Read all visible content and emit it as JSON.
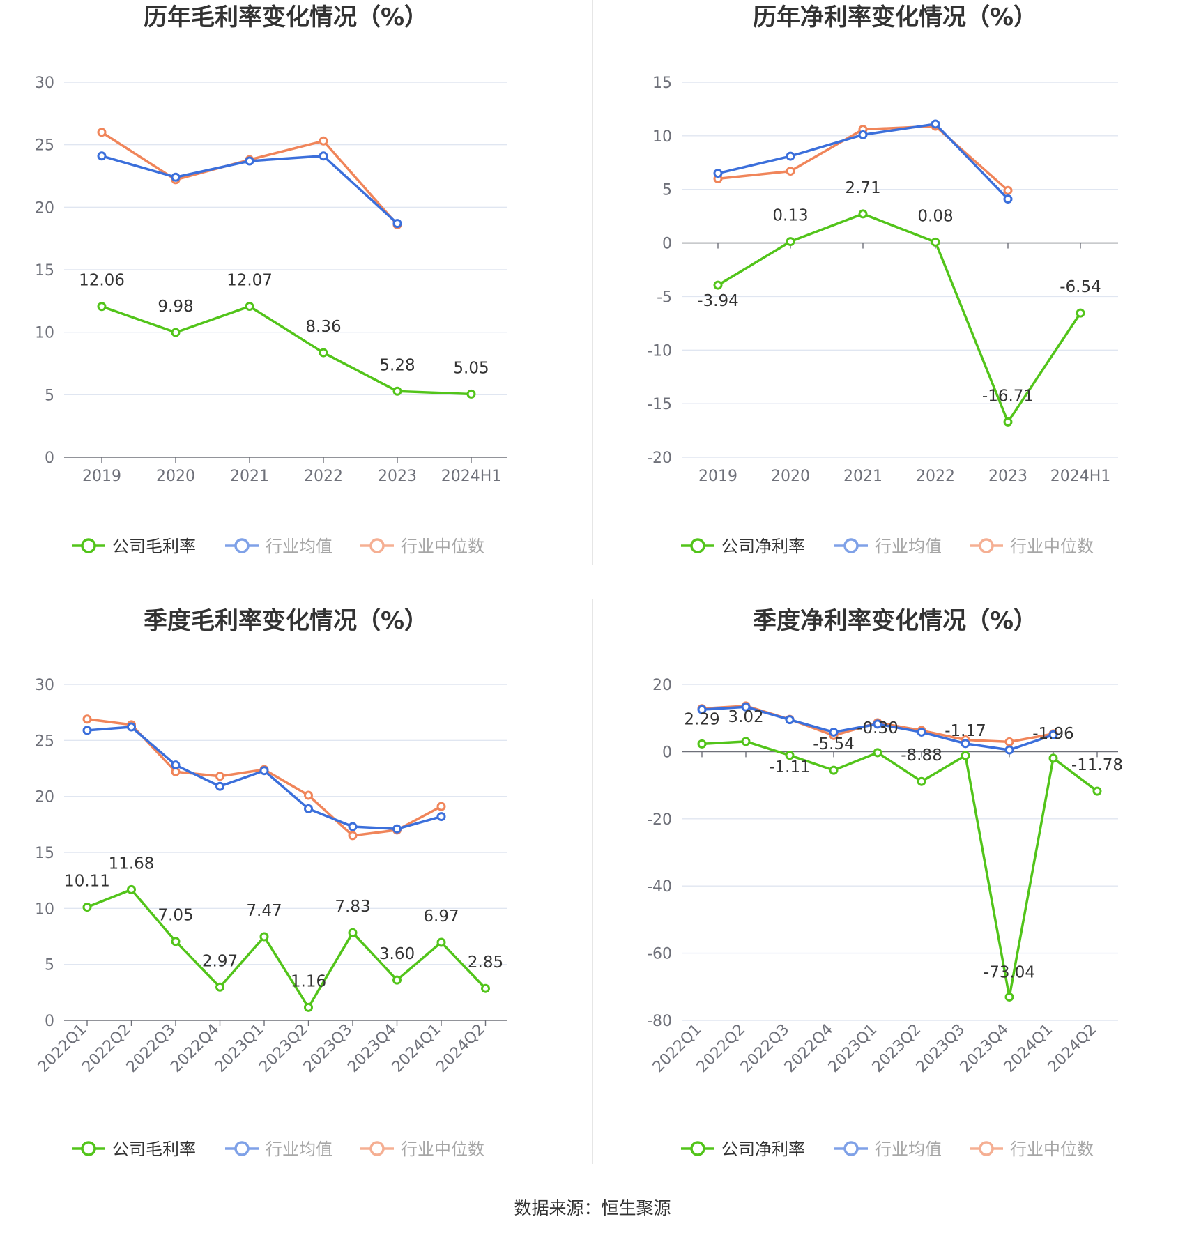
{
  "source_label": "数据来源：恒生聚源",
  "colors": {
    "company": "#52c41a",
    "avg": "#3b6fdb",
    "median": "#f0855a",
    "grid": "#e0e6f1",
    "axis": "#6e7079"
  },
  "chart_data": [
    {
      "id": "annual-gross",
      "type": "line",
      "title": "历年毛利率变化情况（%）",
      "categories": [
        "2019",
        "2020",
        "2021",
        "2022",
        "2023",
        "2024H1"
      ],
      "ylim": [
        0,
        30
      ],
      "yticks": [
        0,
        5,
        10,
        15,
        20,
        25,
        30
      ],
      "rotate_x": false,
      "series": [
        {
          "name": "公司毛利率",
          "key": "company",
          "values": [
            12.06,
            9.98,
            12.07,
            8.36,
            5.28,
            5.05
          ],
          "labels": [
            "12.06",
            "9.98",
            "12.07",
            "8.36",
            "5.28",
            "5.05"
          ]
        },
        {
          "name": "行业均值",
          "key": "avg",
          "values": [
            24.1,
            22.4,
            23.7,
            24.1,
            18.7,
            null
          ]
        },
        {
          "name": "行业中位数",
          "key": "median",
          "values": [
            26.0,
            22.2,
            23.8,
            25.3,
            18.6,
            null
          ]
        }
      ]
    },
    {
      "id": "annual-net",
      "type": "line",
      "title": "历年净利率变化情况（%）",
      "categories": [
        "2019",
        "2020",
        "2021",
        "2022",
        "2023",
        "2024H1"
      ],
      "ylim": [
        -20,
        15
      ],
      "yticks": [
        -20,
        -15,
        -10,
        -5,
        0,
        5,
        10,
        15
      ],
      "rotate_x": false,
      "series": [
        {
          "name": "公司净利率",
          "key": "company",
          "values": [
            -3.94,
            0.13,
            2.71,
            0.08,
            -16.71,
            -6.54
          ],
          "labels": [
            "-3.94",
            "0.13",
            "2.71",
            "0.08",
            "-16.71",
            "-6.54"
          ]
        },
        {
          "name": "行业均值",
          "key": "avg",
          "values": [
            6.5,
            8.1,
            10.1,
            11.1,
            4.1,
            null
          ]
        },
        {
          "name": "行业中位数",
          "key": "median",
          "values": [
            6.0,
            6.7,
            10.6,
            10.9,
            4.9,
            null
          ]
        }
      ]
    },
    {
      "id": "quarter-gross",
      "type": "line",
      "title": "季度毛利率变化情况（%）",
      "categories": [
        "2022Q1",
        "2022Q2",
        "2022Q3",
        "2022Q4",
        "2023Q1",
        "2023Q2",
        "2023Q3",
        "2023Q4",
        "2024Q1",
        "2024Q2"
      ],
      "ylim": [
        0,
        30
      ],
      "yticks": [
        0,
        5,
        10,
        15,
        20,
        25,
        30
      ],
      "rotate_x": true,
      "series": [
        {
          "name": "公司毛利率",
          "key": "company",
          "values": [
            10.11,
            11.68,
            7.05,
            2.97,
            7.47,
            1.16,
            7.83,
            3.6,
            6.97,
            2.85
          ],
          "labels": [
            "10.11",
            "11.68",
            "7.05",
            "2.97",
            "7.47",
            "1.16",
            "7.83",
            "3.60",
            "6.97",
            "2.85"
          ]
        },
        {
          "name": "行业均值",
          "key": "avg",
          "values": [
            25.9,
            26.2,
            22.8,
            20.9,
            22.3,
            18.9,
            17.3,
            17.1,
            18.2,
            null
          ]
        },
        {
          "name": "行业中位数",
          "key": "median",
          "values": [
            26.9,
            26.4,
            22.2,
            21.8,
            22.4,
            20.1,
            16.5,
            17.0,
            19.1,
            null
          ]
        }
      ]
    },
    {
      "id": "quarter-net",
      "type": "line",
      "title": "季度净利率变化情况（%）",
      "categories": [
        "2022Q1",
        "2022Q2",
        "2022Q3",
        "2022Q4",
        "2023Q1",
        "2023Q2",
        "2023Q3",
        "2023Q4",
        "2024Q1",
        "2024Q2"
      ],
      "ylim": [
        -80,
        20
      ],
      "yticks": [
        -80,
        -60,
        -40,
        -20,
        0,
        20
      ],
      "rotate_x": true,
      "series": [
        {
          "name": "公司净利率",
          "key": "company",
          "values": [
            2.29,
            3.02,
            -1.11,
            -5.54,
            -0.3,
            -8.88,
            -1.17,
            -73.04,
            -1.96,
            -11.78
          ],
          "labels": [
            "2.29",
            "3.02",
            "-1.11",
            "-5.54",
            "-0.30",
            "-8.88",
            "-1.17",
            "-73.04",
            "-1.96",
            "-11.78"
          ]
        },
        {
          "name": "行业均值",
          "key": "avg",
          "values": [
            12.5,
            13.3,
            9.5,
            5.8,
            8.2,
            5.8,
            2.4,
            0.5,
            5.0,
            null
          ]
        },
        {
          "name": "行业中位数",
          "key": "median",
          "values": [
            12.8,
            13.6,
            9.6,
            4.8,
            8.6,
            6.3,
            3.5,
            2.9,
            5.3,
            null
          ]
        }
      ]
    }
  ]
}
